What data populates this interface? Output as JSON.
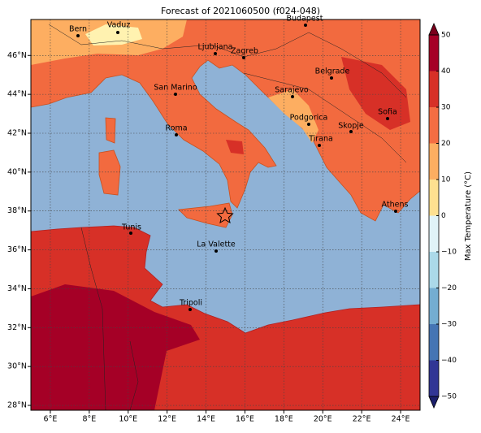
{
  "title": "Forecast of 2021060500 (f024-048)",
  "map": {
    "xlim": [
      5,
      25
    ],
    "ylim": [
      27.75,
      47.85
    ],
    "xticks": [
      {
        "value": 6,
        "label": "6°E"
      },
      {
        "value": 8,
        "label": "8°E"
      },
      {
        "value": 10,
        "label": "10°E"
      },
      {
        "value": 12,
        "label": "12°E"
      },
      {
        "value": 14,
        "label": "14°E"
      },
      {
        "value": 16,
        "label": "16°E"
      },
      {
        "value": 18,
        "label": "18°E"
      },
      {
        "value": 20,
        "label": "20°E"
      },
      {
        "value": 22,
        "label": "22°E"
      },
      {
        "value": 24,
        "label": "24°E"
      }
    ],
    "yticks": [
      {
        "value": 28,
        "label": "28°N"
      },
      {
        "value": 30,
        "label": "30°N"
      },
      {
        "value": 32,
        "label": "32°N"
      },
      {
        "value": 34,
        "label": "34°N"
      },
      {
        "value": 36,
        "label": "36°N"
      },
      {
        "value": 38,
        "label": "38°N"
      },
      {
        "value": 40,
        "label": "40°N"
      },
      {
        "value": 42,
        "label": "42°N"
      },
      {
        "value": 44,
        "label": "44°N"
      },
      {
        "value": 46,
        "label": "46°N"
      }
    ],
    "grid": true,
    "cities": [
      "Bern",
      "Vaduz",
      "Budapest",
      "Ljubljana",
      "Zagreb",
      "Belgrade",
      "San Marino",
      "Sarajevo",
      "Sofia",
      "Podgorica",
      "Skopje",
      "Roma",
      "Tirana",
      "Athens",
      "Tunis",
      "La Valette",
      "Tripoli"
    ]
  },
  "colorbar": {
    "label": "Max Temperature (°C)",
    "lim": [
      -50,
      50
    ],
    "ticks": [
      {
        "value": -50,
        "label": "−50"
      },
      {
        "value": -40,
        "label": "−40"
      },
      {
        "value": -30,
        "label": "−30"
      },
      {
        "value": -20,
        "label": "−20"
      },
      {
        "value": -10,
        "label": "−10"
      },
      0,
      10,
      20,
      30,
      40,
      50
    ],
    "colors": [
      "#313695",
      "#4575b4",
      "#74add1",
      "#abd9e9",
      "#e0f3f8",
      "#fee090",
      "#fdae61",
      "#f46d43",
      "#d73027",
      "#a50026"
    ],
    "extend_colors": [
      "#1b1f6b",
      "#7a001c"
    ]
  }
}
